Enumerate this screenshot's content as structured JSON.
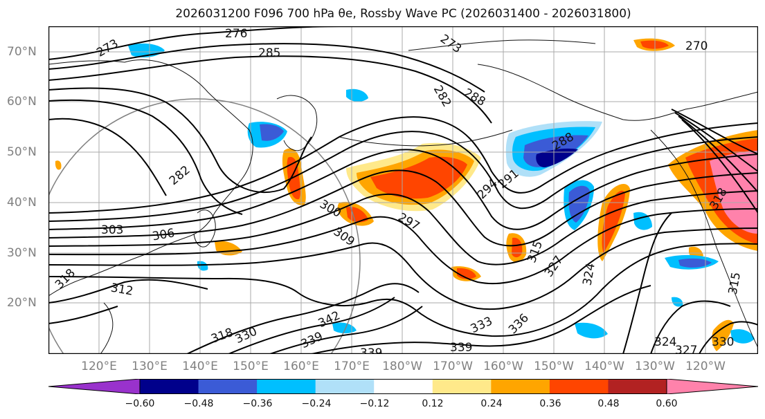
{
  "title": "2026031200 F096 700 hPa θe, Rossby Wave PC (2026031400 - 2026031800)",
  "lat_labels": [
    "70°N",
    "60°N",
    "50°N",
    "40°N",
    "30°N",
    "20°N"
  ],
  "lon_labels": [
    "120°E",
    "130°E",
    "140°E",
    "150°E",
    "160°E",
    "170°E",
    "180°W",
    "170°W",
    "160°W",
    "150°W",
    "140°W",
    "130°W",
    "120°W"
  ],
  "contour_labels": [
    "276",
    "285",
    "273",
    "273",
    "282",
    "282",
    "288",
    "270",
    "300",
    "297",
    "303",
    "306",
    "309",
    "291",
    "294",
    "288",
    "315",
    "327",
    "324",
    "318",
    "312",
    "318",
    "330",
    "342",
    "339",
    "339",
    "333",
    "336",
    "339",
    "324",
    "327",
    "330",
    "315",
    "318"
  ],
  "colorbar": {
    "ticks": [
      "−0.60",
      "−0.48",
      "−0.36",
      "−0.24",
      "−0.12",
      "0.12",
      "0.24",
      "0.36",
      "0.48",
      "0.60"
    ],
    "colors": [
      "#9932cc",
      "#00008b",
      "#3b5bd6",
      "#00bfff",
      "#b0e0f8",
      "#ffffff",
      "#ffe98a",
      "#ffa500",
      "#ff4500",
      "#b22222",
      "#ff82ab"
    ]
  },
  "fill_colors": {
    "neg_light": "#b0e0f8",
    "neg_mid": "#00bfff",
    "neg_strong": "#3b5bd6",
    "pos_light": "#ffe98a",
    "pos_mid": "#ffa500",
    "pos_strong": "#ff4500",
    "pos_max": "#ff82ab"
  }
}
